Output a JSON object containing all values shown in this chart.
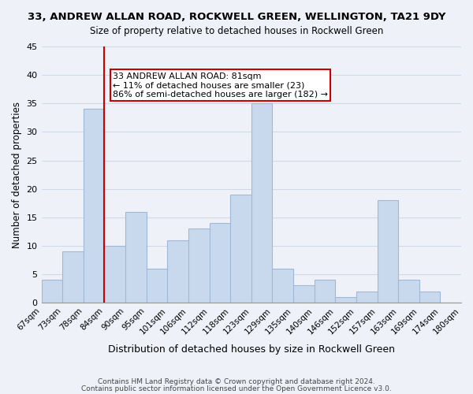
{
  "title": "33, ANDREW ALLAN ROAD, ROCKWELL GREEN, WELLINGTON, TA21 9DY",
  "subtitle": "Size of property relative to detached houses in Rockwell Green",
  "xlabel": "Distribution of detached houses by size in Rockwell Green",
  "ylabel": "Number of detached properties",
  "footer_line1": "Contains HM Land Registry data © Crown copyright and database right 2024.",
  "footer_line2": "Contains public sector information licensed under the Open Government Licence v3.0.",
  "bin_labels": [
    "67sqm",
    "73sqm",
    "78sqm",
    "84sqm",
    "90sqm",
    "95sqm",
    "101sqm",
    "106sqm",
    "112sqm",
    "118sqm",
    "123sqm",
    "129sqm",
    "135sqm",
    "140sqm",
    "146sqm",
    "152sqm",
    "157sqm",
    "163sqm",
    "169sqm",
    "174sqm",
    "180sqm"
  ],
  "bar_values": [
    4,
    9,
    34,
    10,
    16,
    6,
    11,
    13,
    14,
    19,
    35,
    6,
    3,
    4,
    1,
    2,
    18,
    4,
    2,
    0
  ],
  "bar_color": "#c9d9ed",
  "bar_edge_color": "#a0b8d8",
  "annotation_box_text": "33 ANDREW ALLAN ROAD: 81sqm\n← 11% of detached houses are smaller (23)\n86% of semi-detached houses are larger (182) →",
  "red_line_color": "#cc0000",
  "red_line_x": 3.0,
  "grid_color": "#d0d8e8",
  "background_color": "#eef2f8",
  "ylim": [
    0,
    45
  ],
  "yticks": [
    0,
    5,
    10,
    15,
    20,
    25,
    30,
    35,
    40,
    45
  ]
}
